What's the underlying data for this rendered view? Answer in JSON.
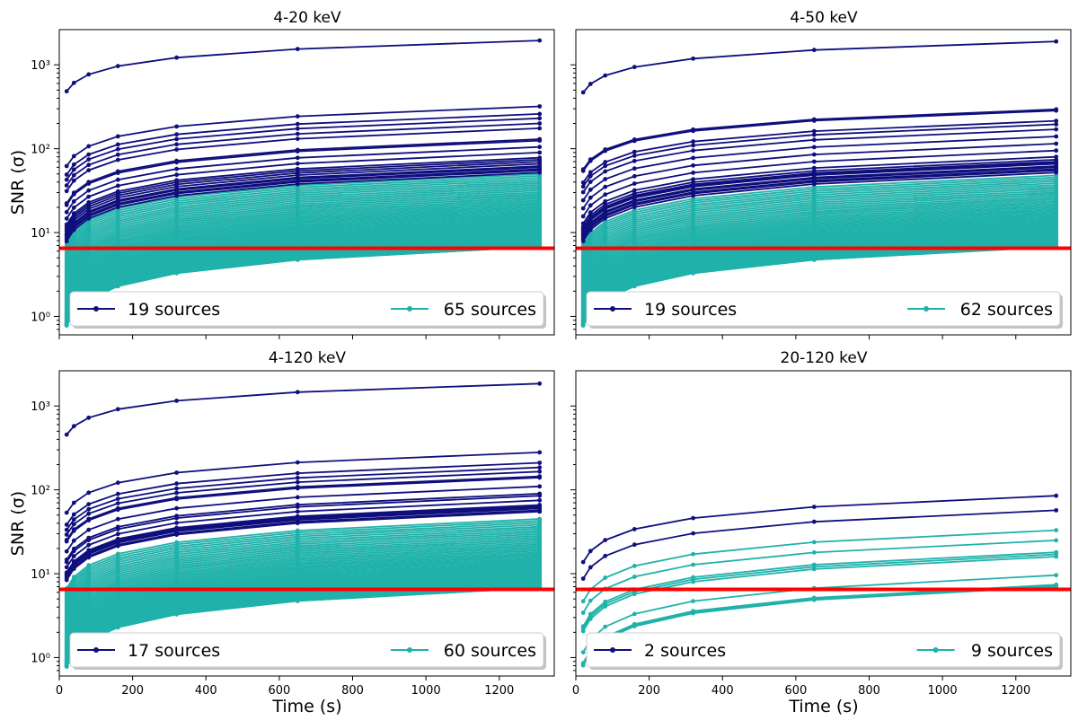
{
  "chart_data": {
    "type": "line",
    "shared": {
      "xlabel": "Time (s)",
      "ylabel": "SNR (σ)",
      "xlim": [
        0,
        1350
      ],
      "ylim_log10": [
        -0.22,
        3.42
      ],
      "x_ticks": [
        0,
        200,
        400,
        600,
        800,
        1000,
        1200
      ],
      "y_ticks": [
        {
          "value": 1,
          "label": "10⁰"
        },
        {
          "value": 10,
          "label": "10¹"
        },
        {
          "value": 100,
          "label": "10²"
        },
        {
          "value": 1000,
          "label": "10³"
        }
      ],
      "times": [
        20,
        40,
        80,
        160,
        320,
        650,
        1310
      ],
      "threshold": 6.5,
      "colors": {
        "bright": "#0f0f7d",
        "faint": "#20b2aa",
        "threshold": "#ff0000"
      }
    },
    "panels": [
      {
        "title": "4-20 keV",
        "legend": [
          "19 sources",
          "65 sources"
        ],
        "bright_final": [
          1950,
          320,
          260,
          230,
          200,
          175,
          130,
          125,
          105,
          90,
          78,
          74,
          70,
          66,
          62,
          60,
          57,
          55,
          52
        ],
        "faint_range": [
          6.8,
          50
        ],
        "faint_count": 65
      },
      {
        "title": "4-50 keV",
        "legend": [
          "19 sources",
          "62 sources"
        ],
        "bright_final": [
          1900,
          295,
          285,
          215,
          195,
          170,
          140,
          115,
          95,
          80,
          74,
          70,
          68,
          66,
          62,
          60,
          57,
          55,
          52
        ],
        "faint_range": [
          6.8,
          48
        ],
        "faint_count": 62
      },
      {
        "title": "4-120 keV",
        "legend": [
          "17 sources",
          "60 sources"
        ],
        "bright_final": [
          1850,
          280,
          210,
          185,
          165,
          145,
          140,
          110,
          90,
          85,
          75,
          66,
          64,
          62,
          60,
          57,
          55
        ],
        "faint_range": [
          6.8,
          45
        ],
        "faint_count": 60
      },
      {
        "title": "20-120 keV",
        "legend": [
          "2 sources",
          "9 sources"
        ],
        "bright_final": [
          85,
          57
        ],
        "faint_final": [
          33,
          25,
          18,
          17,
          16,
          9.6,
          7.4,
          7.2,
          7.0
        ],
        "faint_count": 9
      }
    ]
  }
}
